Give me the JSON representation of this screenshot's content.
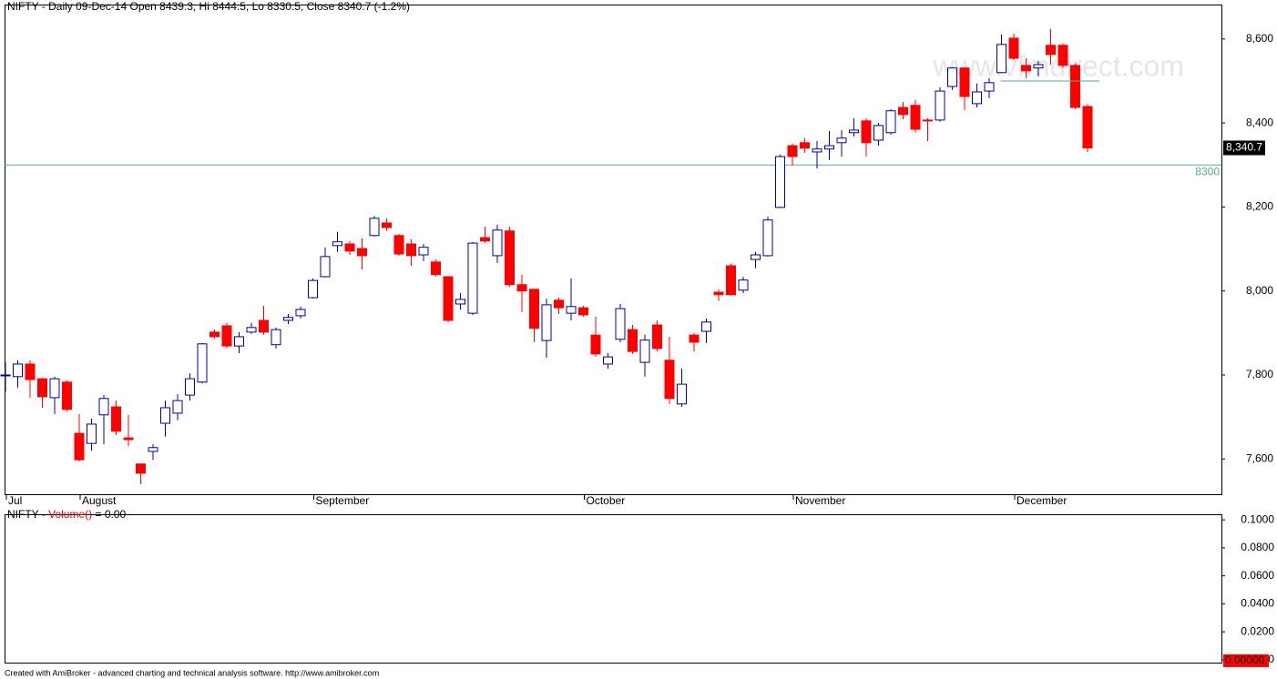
{
  "chart_data": [
    {
      "type": "candlestick",
      "title": "NIFTY - Daily 09-Dec-14 Open 8439.3, Hi 8444.5, Lo 8330.5, Close 8340.7 (-1.2%)",
      "watermark": "www.vfmdirect.com",
      "categories": [
        "Jul",
        null,
        null,
        null,
        null,
        null,
        "August",
        null,
        null,
        null,
        null,
        null,
        null,
        null,
        null,
        null,
        null,
        null,
        null,
        null,
        null,
        null,
        null,
        null,
        null,
        "September",
        null,
        null,
        null,
        null,
        null,
        null,
        null,
        null,
        null,
        null,
        null,
        null,
        null,
        null,
        null,
        null,
        null,
        null,
        null,
        null,
        null,
        "October",
        null,
        null,
        null,
        null,
        null,
        null,
        null,
        null,
        null,
        null,
        null,
        null,
        null,
        null,
        null,
        null,
        "November",
        null,
        null,
        null,
        null,
        null,
        null,
        null,
        null,
        null,
        null,
        null,
        null,
        null,
        null,
        null,
        null,
        null,
        "December",
        null,
        null,
        null,
        null,
        null,
        null
      ],
      "open": [
        7798,
        7796,
        7826,
        7791,
        7746,
        7783,
        7661,
        7637,
        7705,
        7724,
        7650,
        7588,
        7618,
        7685,
        7709,
        7752,
        7783,
        7902,
        7917,
        7869,
        7902,
        7930,
        7872,
        7930,
        7941,
        7984,
        8034,
        8108,
        8112,
        8101,
        8132,
        8162,
        8132,
        8112,
        8086,
        8069,
        8034,
        7969,
        7947,
        8127,
        8084,
        8143,
        8015,
        8004,
        7882,
        7978,
        7947,
        7960,
        7895,
        7826,
        7885,
        7908,
        7830,
        7919,
        7835,
        7731,
        7895,
        7904,
        7997,
        8060,
        8002,
        8075,
        8084,
        8199,
        8346,
        8353,
        8331,
        8338,
        8353,
        8377,
        8405,
        8359,
        8377,
        8437,
        8442,
        8407,
        8407,
        8487,
        8531,
        8446,
        8476,
        8520,
        8602,
        8537,
        8531,
        8585,
        8585,
        8537,
        8439.3
      ],
      "high": [
        7830,
        7835,
        7835,
        7793,
        7796,
        7787,
        7707,
        7696,
        7752,
        7739,
        7705,
        7588,
        7635,
        7739,
        7754,
        7804,
        7876,
        7908,
        7924,
        7902,
        7924,
        7965,
        7913,
        7945,
        7963,
        8030,
        8104,
        8141,
        8119,
        8125,
        8179,
        8173,
        8136,
        8123,
        8112,
        8075,
        8034,
        7995,
        8117,
        8153,
        8158,
        8153,
        8039,
        8004,
        7982,
        7984,
        8030,
        7965,
        7939,
        7852,
        7969,
        7919,
        7896,
        7930,
        7891,
        7815,
        7900,
        7934,
        8004,
        8065,
        8034,
        8093,
        8177,
        8325,
        8351,
        8364,
        8357,
        8381,
        8383,
        8411,
        8411,
        8400,
        8433,
        8450,
        8455,
        8411,
        8485,
        8533,
        8533,
        8494,
        8507,
        8611,
        8613,
        8554,
        8548,
        8624,
        8589,
        8542,
        8444.5
      ],
      "low": [
        7760,
        7770,
        7746,
        7722,
        7707,
        7713,
        7594,
        7620,
        7635,
        7657,
        7631,
        7540,
        7598,
        7653,
        7692,
        7739,
        7780,
        7887,
        7863,
        7852,
        7898,
        7896,
        7863,
        7921,
        7934,
        7982,
        8032,
        8093,
        8086,
        8051,
        8130,
        8143,
        8084,
        8060,
        8071,
        8034,
        7926,
        7956,
        7943,
        8114,
        8067,
        8010,
        7950,
        7878,
        7841,
        7945,
        7930,
        7939,
        7843,
        7815,
        7878,
        7850,
        7796,
        7856,
        7731,
        7724,
        7856,
        7876,
        7976,
        7989,
        7995,
        8054,
        8082,
        8197,
        8299,
        8329,
        8292,
        8312,
        8320,
        8368,
        8320,
        8346,
        8372,
        8409,
        8377,
        8357,
        8403,
        8479,
        8431,
        8437,
        8459,
        8518,
        8550,
        8507,
        8511,
        8539,
        8531,
        8433,
        8330.5
      ],
      "close": [
        7800,
        7826,
        7789,
        7748,
        7791,
        7718,
        7598,
        7683,
        7744,
        7666,
        7646,
        7566,
        7627,
        7722,
        7739,
        7791,
        7874,
        7891,
        7869,
        7891,
        7913,
        7902,
        7908,
        7937,
        7956,
        8025,
        8082,
        8117,
        8095,
        8084,
        8173,
        8151,
        8088,
        8084,
        8104,
        8039,
        7930,
        7980,
        8114,
        8119,
        8145,
        8015,
        8000,
        7911,
        7967,
        7960,
        7963,
        7943,
        7850,
        7843,
        7958,
        7856,
        7883,
        7863,
        7744,
        7778,
        7878,
        7926,
        7991,
        7991,
        8026,
        8086,
        8169,
        8320,
        8320,
        8340,
        8338,
        8346,
        8364,
        8383,
        8353,
        8394,
        8429,
        8420,
        8385,
        8405,
        8476,
        8531,
        8463,
        8474,
        8496,
        8587,
        8554,
        8524,
        8539,
        8563,
        8537,
        8437,
        8340.7
      ],
      "up_color": "#0000aa",
      "down_color": "#ff0000",
      "last_close_label": "8,340.7",
      "hlines": [
        8300
      ],
      "hline_color": "#5aa88a",
      "trend_line": 8500,
      "trend_color": "#5aa88a",
      "ylim": [
        7516,
        8682
      ],
      "yticks": [
        {
          "value": 7600,
          "label": "7,600"
        },
        {
          "value": 7800,
          "label": "7,800"
        },
        {
          "value": 8000,
          "label": "8,000"
        },
        {
          "value": 8200,
          "label": "8,200"
        },
        {
          "value": 8400,
          "label": "8,400"
        },
        {
          "value": 8600,
          "label": "8,600"
        }
      ]
    },
    {
      "type": "volume",
      "title_parts": [
        "NIFTY - ",
        "Volume()",
        " = 0.00"
      ],
      "ylim": [
        -0.002,
        0.104
      ],
      "yticks": [
        0,
        {
          "value": 0.02,
          "label": "0.0200"
        },
        {
          "value": 0.04,
          "label": "0.0400"
        },
        {
          "value": 0.06,
          "label": "0.0600"
        },
        {
          "value": 0.08,
          "label": "0.0800"
        },
        {
          "value": 0.1,
          "label": "0.1000"
        }
      ],
      "last_value": {
        "value": 0,
        "label": "0.00000"
      }
    }
  ],
  "footer": "Created with AmiBroker - advanced charting and technical analysis software. http://www.amibroker.com"
}
